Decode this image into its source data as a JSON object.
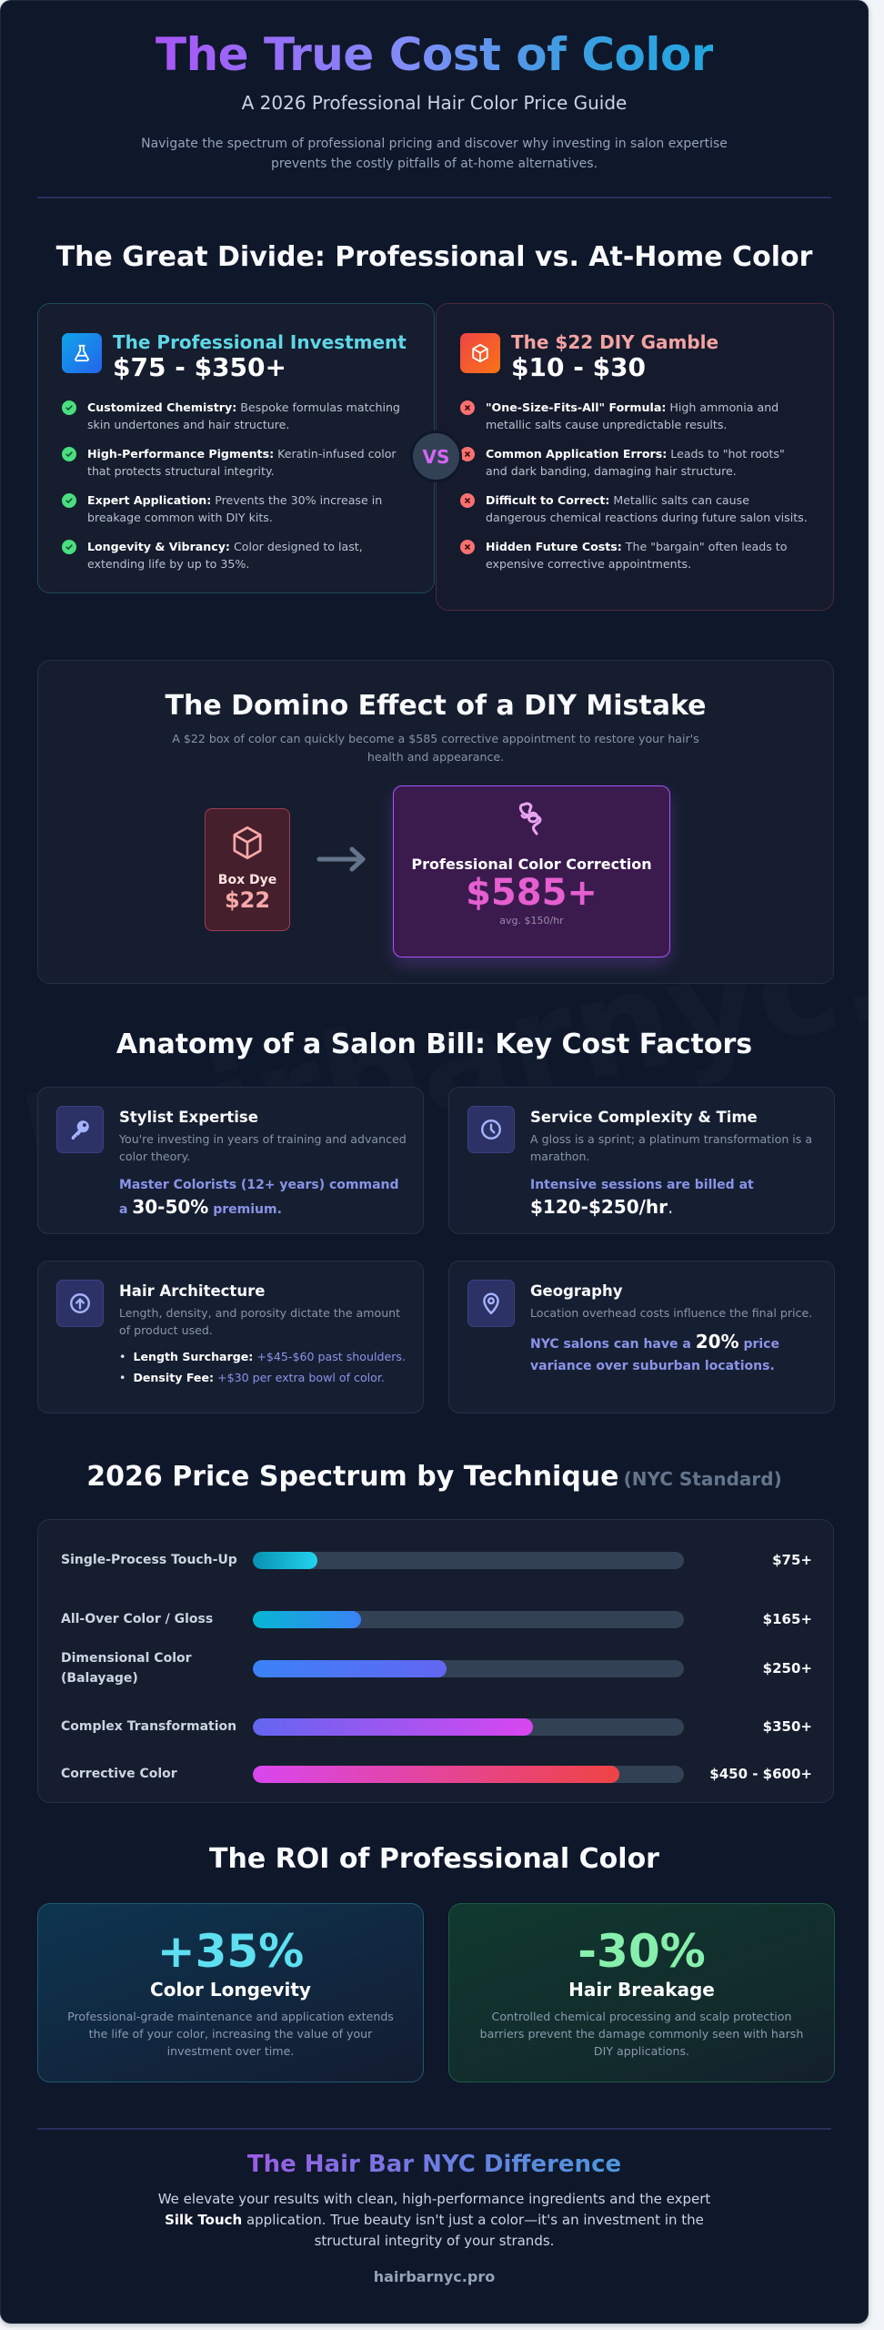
{
  "header": {
    "title": "The True Cost of Color",
    "subtitle": "A 2026 Professional Hair Color Price Guide",
    "intro": "Navigate the spectrum of professional pricing and discover why investing in salon expertise prevents the costly pitfalls of at-home alternatives."
  },
  "watermark": "hairbarnyc.pro",
  "comparison": {
    "heading": "The Great Divide: Professional vs. At-Home Color",
    "vs_label": "VS",
    "professional": {
      "icon": "flask-icon",
      "label": "The Professional Investment",
      "price": "$75 - $350+",
      "items": [
        {
          "bold": "Customized Chemistry:",
          "text": " Bespoke formulas matching skin undertones and hair structure."
        },
        {
          "bold": "High-Performance Pigments:",
          "text": " Keratin-infused color that protects structural integrity."
        },
        {
          "bold": "Expert Application:",
          "text": " Prevents the 30% increase in breakage common with DIY kits."
        },
        {
          "bold": "Longevity & Vibrancy:",
          "text": " Color designed to last, extending life by up to 35%."
        }
      ]
    },
    "diy": {
      "icon": "box-icon",
      "label": "The $22 DIY Gamble",
      "price": "$10 - $30",
      "items": [
        {
          "bold": "\"One-Size-Fits-All\" Formula:",
          "text": " High ammonia and metallic salts cause unpredictable results."
        },
        {
          "bold": "Common Application Errors:",
          "text": " Leads to \"hot roots\" and dark banding, damaging hair structure."
        },
        {
          "bold": "Difficult to Correct:",
          "text": " Metallic salts can cause dangerous chemical reactions during future salon visits."
        },
        {
          "bold": "Hidden Future Costs:",
          "text": " The \"bargain\" often leads to expensive corrective appointments."
        }
      ]
    }
  },
  "domino": {
    "title": "The Domino Effect of a DIY Mistake",
    "subtitle": "A $22 box of color can quickly become a $585 corrective appointment to restore your hair's health and appearance.",
    "box_dye": {
      "label": "Box Dye",
      "price": "$22"
    },
    "correction": {
      "label": "Professional Color Correction",
      "price": "$585+",
      "note": "avg. $150/hr"
    }
  },
  "factors": {
    "heading": "Anatomy of a Salon Bill: Key Cost Factors",
    "items": [
      {
        "icon": "key-icon",
        "title": "Stylist Expertise",
        "desc": "You're investing in years of training and advanced color theory.",
        "hi_pre": "Master Colorists (12+ years) command a ",
        "hi_big": "30-50%",
        "hi_post": " premium."
      },
      {
        "icon": "clock-icon",
        "title": "Service Complexity & Time",
        "desc": "A gloss is a sprint; a platinum transformation is a marathon.",
        "hi_pre": "Intensive sessions are billed at ",
        "hi_big": "$120-$250/hr",
        "hi_post": "."
      },
      {
        "icon": "arrow-up-circle-icon",
        "title": "Hair Architecture",
        "desc": "Length, density, and porosity dictate the amount of product used.",
        "list": [
          {
            "bold": "Length Surcharge:",
            "text": " +$45-$60 past shoulders."
          },
          {
            "bold": "Density Fee:",
            "text": " +$30 per extra bowl of color."
          }
        ]
      },
      {
        "icon": "map-pin-icon",
        "title": "Geography",
        "desc": "Location overhead costs influence the final price.",
        "hi_pre": "NYC salons can have a ",
        "hi_big": "20%",
        "hi_post": " price variance over suburban locations."
      }
    ]
  },
  "spectrum": {
    "heading": "2026 Price Spectrum by Technique",
    "heading_note": "(NYC Standard)"
  },
  "chart_data": {
    "type": "bar",
    "orientation": "horizontal",
    "title": "2026 Price Spectrum by Technique (NYC Standard)",
    "categories": [
      "Single-Process Touch-Up",
      "All-Over Color / Gloss",
      "Dimensional Color (Balayage)",
      "Complex Transformation",
      "Corrective Color"
    ],
    "values": [
      15,
      25,
      45,
      65,
      85
    ],
    "value_labels": [
      "$75+",
      "$165+",
      "$250+",
      "$350+",
      "$450 - $600+"
    ],
    "xlabel": "",
    "ylabel": "",
    "xlim": [
      0,
      100
    ],
    "grid": false,
    "legend": "none",
    "bar_colors": [
      [
        "#0891b2",
        "#22d3ee"
      ],
      [
        "#06b6d4",
        "#3b82f6"
      ],
      [
        "#3b82f6",
        "#6366f1"
      ],
      [
        "#6366f1",
        "#d946ef"
      ],
      [
        "#d946ef",
        "#ef4444"
      ]
    ]
  },
  "roi": {
    "heading": "The ROI of Professional Color",
    "cards": [
      {
        "value": "+35%",
        "label": "Color Longevity",
        "desc": "Professional-grade maintenance and application extends the life of your color, increasing the value of your investment over time."
      },
      {
        "value": "-30%",
        "label": "Hair Breakage",
        "desc": "Controlled chemical processing and scalp protection barriers prevent the damage commonly seen with harsh DIY applications."
      }
    ]
  },
  "footer": {
    "title": "The Hair Bar NYC Difference",
    "body_pre": "We elevate your results with clean, high-performance ingredients and the expert ",
    "body_bold": "Silk Touch",
    "body_post": " application. True beauty isn't just a color—it's an investment in the structural integrity of your strands.",
    "url": "hairbarnyc.pro"
  }
}
